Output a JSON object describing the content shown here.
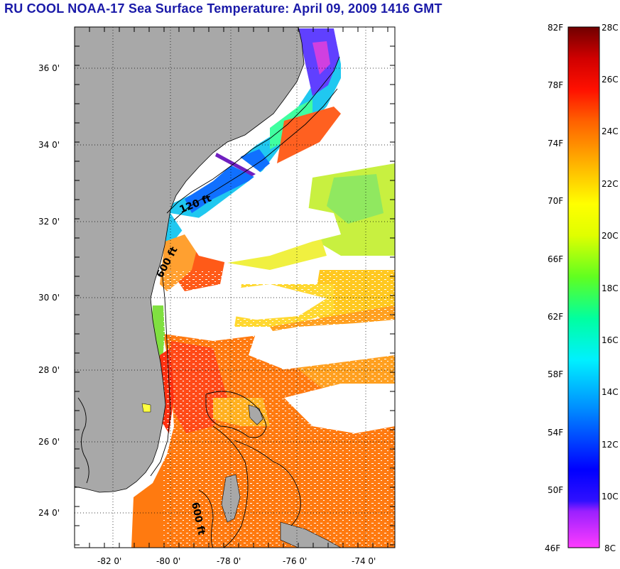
{
  "title": "RU COOL  NOAA-17  Sea Surface Temperature:  April 09, 2009 1416 GMT",
  "map": {
    "lat_ticks": [
      "36 0'",
      "34 0'",
      "32 0'",
      "30 0'",
      "28 0'",
      "26 0'",
      "24 0'"
    ],
    "lon_ticks": [
      "-82 0'",
      "-80 0'",
      "-78 0'",
      "-76 0'",
      "-74 0'"
    ],
    "contours": [
      "120 ft",
      "600 ft",
      "600 ft"
    ],
    "colors": {
      "land": "#a8a8a8",
      "water_cloud": "#ffffff"
    }
  },
  "colorbar": {
    "f_labels": [
      "82F",
      "78F",
      "74F",
      "70F",
      "66F",
      "62F",
      "58F",
      "54F",
      "50F",
      "46F"
    ],
    "c_labels": [
      "28C",
      "26C",
      "24C",
      "22C",
      "20C",
      "18C",
      "16C",
      "14C",
      "12C",
      "10C",
      "8C"
    ],
    "colors": [
      "#ff3cff",
      "#9a20ff",
      "#0000ff",
      "#0078ff",
      "#00e0ff",
      "#00ffa0",
      "#40ff40",
      "#d0ff00",
      "#ffff00",
      "#ffc000",
      "#ff7000",
      "#ff2000",
      "#d00000",
      "#800000"
    ]
  }
}
